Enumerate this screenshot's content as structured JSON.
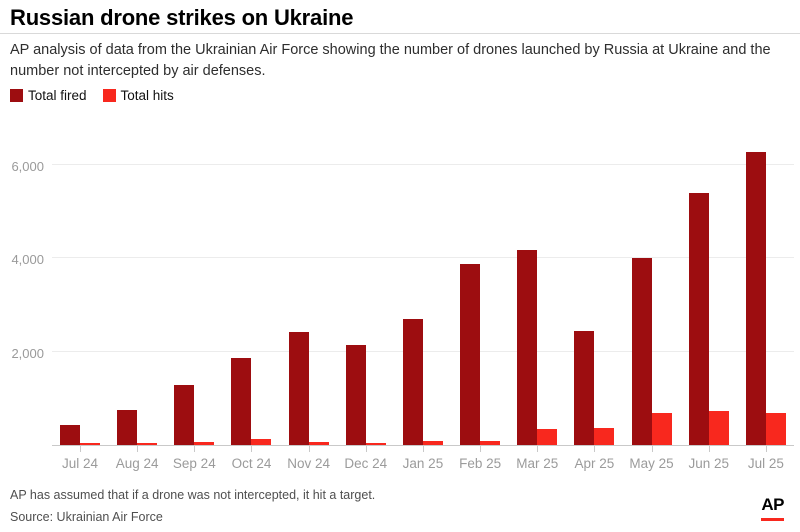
{
  "header": {
    "title": "Russian drone strikes on Ukraine",
    "subtitle": "AP analysis of data from the Ukrainian Air Force showing the number of drones launched by Russia at Ukraine and the number not intercepted by air defenses."
  },
  "legend": [
    {
      "label": "Total fired",
      "color": "#9d0d10"
    },
    {
      "label": "Total hits",
      "color": "#f8281e"
    }
  ],
  "chart_data": {
    "type": "bar",
    "title": "Russian drone strikes on Ukraine",
    "categories": [
      "Jul 24",
      "Aug 24",
      "Sep 24",
      "Oct 24",
      "Nov 24",
      "Dec 24",
      "Jan 25",
      "Feb 25",
      "Mar 25",
      "Apr 25",
      "May 25",
      "Jun 25",
      "Jul 25"
    ],
    "series": [
      {
        "name": "Total fired",
        "color": "#9d0d10",
        "values": [
          420,
          760,
          1290,
          1860,
          2430,
          2150,
          2700,
          3880,
          4170,
          2450,
          4000,
          5400,
          6270
        ]
      },
      {
        "name": "Total hits",
        "color": "#f8281e",
        "values": [
          40,
          40,
          60,
          120,
          75,
          35,
          80,
          85,
          340,
          360,
          690,
          730,
          680
        ]
      }
    ],
    "ylim": [
      0,
      6600
    ],
    "yticks": [
      {
        "value": 2000,
        "label": "2,000"
      },
      {
        "value": 4000,
        "label": "4,000"
      },
      {
        "value": 6000,
        "label": "6,000"
      }
    ],
    "grid": "horizontal",
    "legend_position": "top-left",
    "xlabel": "",
    "ylabel": ""
  },
  "footer": {
    "note": "AP has assumed that if a drone was not intercepted, it hit a target.",
    "source": "Source: Ukrainian Air Force",
    "logo": "AP"
  }
}
